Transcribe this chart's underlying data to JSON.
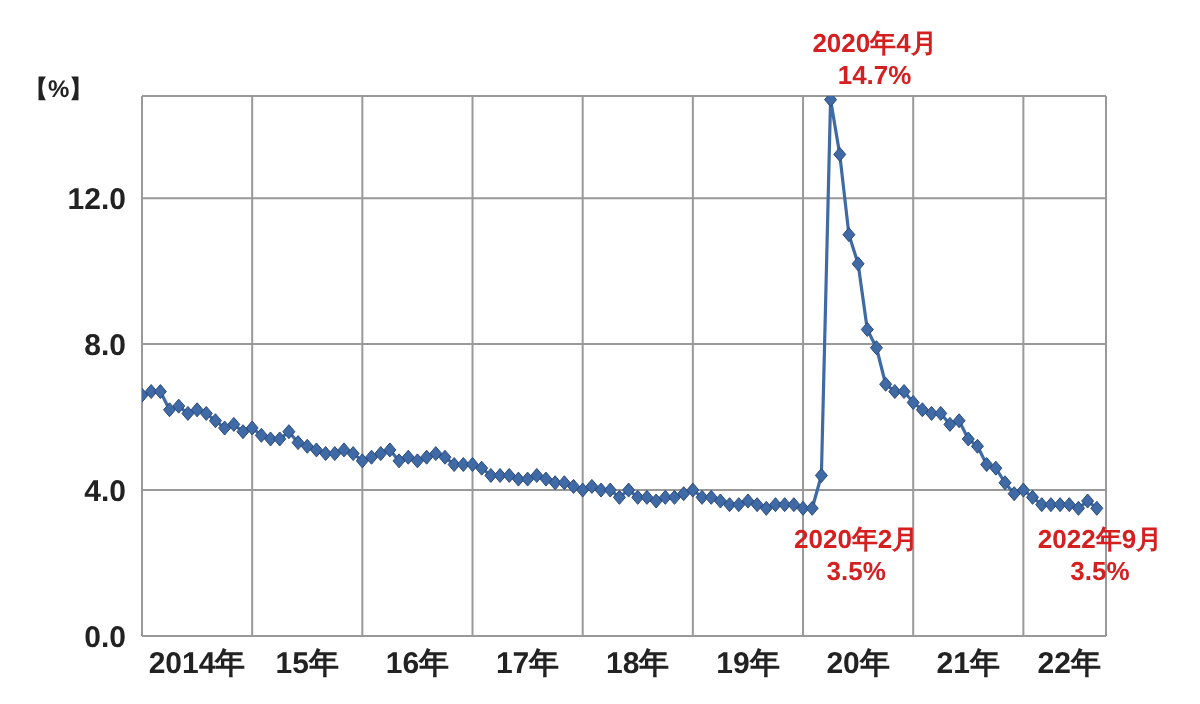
{
  "chart_data": {
    "type": "line",
    "ylabel": "【%】",
    "x": [
      "2014-01",
      "2014-02",
      "2014-03",
      "2014-04",
      "2014-05",
      "2014-06",
      "2014-07",
      "2014-08",
      "2014-09",
      "2014-10",
      "2014-11",
      "2014-12",
      "2015-01",
      "2015-02",
      "2015-03",
      "2015-04",
      "2015-05",
      "2015-06",
      "2015-07",
      "2015-08",
      "2015-09",
      "2015-10",
      "2015-11",
      "2015-12",
      "2016-01",
      "2016-02",
      "2016-03",
      "2016-04",
      "2016-05",
      "2016-06",
      "2016-07",
      "2016-08",
      "2016-09",
      "2016-10",
      "2016-11",
      "2016-12",
      "2017-01",
      "2017-02",
      "2017-03",
      "2017-04",
      "2017-05",
      "2017-06",
      "2017-07",
      "2017-08",
      "2017-09",
      "2017-10",
      "2017-11",
      "2017-12",
      "2018-01",
      "2018-02",
      "2018-03",
      "2018-04",
      "2018-05",
      "2018-06",
      "2018-07",
      "2018-08",
      "2018-09",
      "2018-10",
      "2018-11",
      "2018-12",
      "2019-01",
      "2019-02",
      "2019-03",
      "2019-04",
      "2019-05",
      "2019-06",
      "2019-07",
      "2019-08",
      "2019-09",
      "2019-10",
      "2019-11",
      "2019-12",
      "2020-01",
      "2020-02",
      "2020-03",
      "2020-04",
      "2020-05",
      "2020-06",
      "2020-07",
      "2020-08",
      "2020-09",
      "2020-10",
      "2020-11",
      "2020-12",
      "2021-01",
      "2021-02",
      "2021-03",
      "2021-04",
      "2021-05",
      "2021-06",
      "2021-07",
      "2021-08",
      "2021-09",
      "2021-10",
      "2021-11",
      "2021-12",
      "2022-01",
      "2022-02",
      "2022-03",
      "2022-04",
      "2022-05",
      "2022-06",
      "2022-07",
      "2022-08",
      "2022-09"
    ],
    "series": [
      {
        "color": "#3f6aa5",
        "values": [
          6.6,
          6.7,
          6.7,
          6.2,
          6.3,
          6.1,
          6.2,
          6.1,
          5.9,
          5.7,
          5.8,
          5.6,
          5.7,
          5.5,
          5.4,
          5.4,
          5.6,
          5.3,
          5.2,
          5.1,
          5.0,
          5.0,
          5.1,
          5.0,
          4.8,
          4.9,
          5.0,
          5.1,
          4.8,
          4.9,
          4.8,
          4.9,
          5.0,
          4.9,
          4.7,
          4.7,
          4.7,
          4.6,
          4.4,
          4.4,
          4.4,
          4.3,
          4.3,
          4.4,
          4.3,
          4.2,
          4.2,
          4.1,
          4.0,
          4.1,
          4.0,
          4.0,
          3.8,
          4.0,
          3.8,
          3.8,
          3.7,
          3.8,
          3.8,
          3.9,
          4.0,
          3.8,
          3.8,
          3.7,
          3.6,
          3.6,
          3.7,
          3.6,
          3.5,
          3.6,
          3.6,
          3.6,
          3.5,
          3.5,
          4.4,
          14.7,
          13.2,
          11.0,
          10.2,
          8.4,
          7.9,
          6.9,
          6.7,
          6.7,
          6.4,
          6.2,
          6.1,
          6.1,
          5.8,
          5.9,
          5.4,
          5.2,
          4.7,
          4.6,
          4.2,
          3.9,
          4.0,
          3.8,
          3.6,
          3.6,
          3.6,
          3.6,
          3.5,
          3.7,
          3.5
        ]
      }
    ],
    "xlim": [
      "2014-01",
      "2022-10"
    ],
    "xticks": [
      {
        "value": "2014-01",
        "label": null
      },
      {
        "value": "2014-07",
        "label": "2014年"
      },
      {
        "value": "2015-01",
        "label": null
      },
      {
        "value": "2015-07",
        "label": "15年"
      },
      {
        "value": "2016-01",
        "label": null
      },
      {
        "value": "2016-07",
        "label": "16年"
      },
      {
        "value": "2017-01",
        "label": null
      },
      {
        "value": "2017-07",
        "label": "17年"
      },
      {
        "value": "2018-01",
        "label": null
      },
      {
        "value": "2018-07",
        "label": "18年"
      },
      {
        "value": "2019-01",
        "label": null
      },
      {
        "value": "2019-07",
        "label": "19年"
      },
      {
        "value": "2020-01",
        "label": null
      },
      {
        "value": "2020-07",
        "label": "20年"
      },
      {
        "value": "2021-01",
        "label": null
      },
      {
        "value": "2021-07",
        "label": "21年"
      },
      {
        "value": "2022-01",
        "label": null
      },
      {
        "value": "2022-06",
        "label": "22年"
      },
      {
        "value": "2022-10",
        "label": null
      }
    ],
    "ylim": [
      0,
      14.8
    ],
    "yticks": [
      {
        "value": 0,
        "label": "0.0"
      },
      {
        "value": 4,
        "label": "4.0"
      },
      {
        "value": 8,
        "label": "8.0"
      },
      {
        "value": 12,
        "label": "12.0"
      }
    ],
    "grid": true,
    "marker": "diamond",
    "legend": false,
    "annotations": [
      {
        "text": "2020年4月\n14.7%",
        "x": "2020-04",
        "y": 14.7
      },
      {
        "text": "2020年2月\n3.5%",
        "x": "2020-02",
        "y": 3.5
      },
      {
        "text": "2022年9月\n3.5%",
        "x": "2022-09",
        "y": 3.5
      }
    ]
  }
}
